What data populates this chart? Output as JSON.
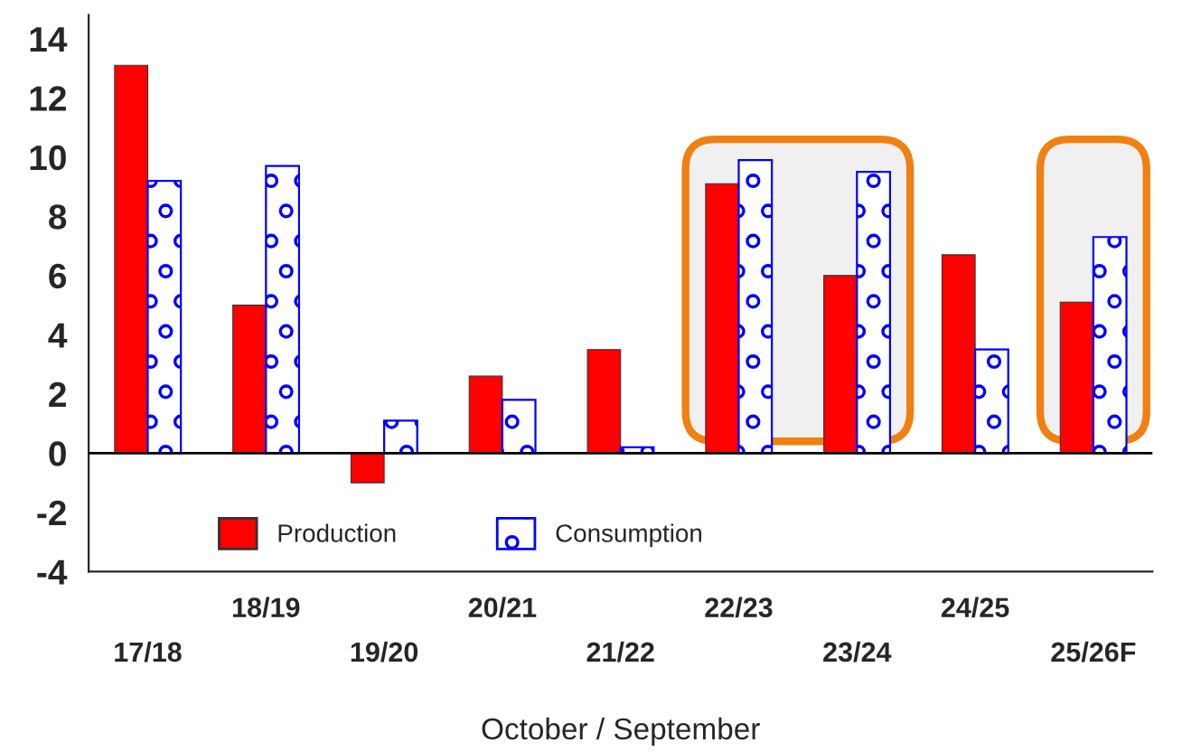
{
  "chart_data": {
    "type": "bar",
    "xlabel": "October / September",
    "categories": [
      "17/18",
      "18/19",
      "19/20",
      "20/21",
      "21/22",
      "22/23",
      "23/24",
      "24/25",
      "25/26F"
    ],
    "series": [
      {
        "name": "Production",
        "color": "#ff0000",
        "values": [
          13.1,
          5.0,
          -1.0,
          2.6,
          3.5,
          9.1,
          6.0,
          6.7,
          5.1
        ]
      },
      {
        "name": "Consumption",
        "color": "#0000ff",
        "values": [
          9.2,
          9.7,
          1.1,
          1.8,
          0.2,
          9.9,
          9.5,
          3.5,
          7.3
        ]
      }
    ],
    "ylim": [
      -4,
      14.8
    ],
    "yticks": [
      -4,
      -2,
      0,
      2,
      4,
      6,
      8,
      10,
      12,
      14
    ],
    "bands": [
      {
        "axis": "x",
        "from": "22/23",
        "to": "23/24",
        "color": "#f0f0f0"
      },
      {
        "axis": "x",
        "from": "25/26F",
        "to": "25/26F",
        "color": "#f0f0f0"
      }
    ],
    "ref_lines": [
      {
        "axis": "y",
        "value": 0,
        "color": "#000000"
      }
    ],
    "legend": "bottom"
  }
}
